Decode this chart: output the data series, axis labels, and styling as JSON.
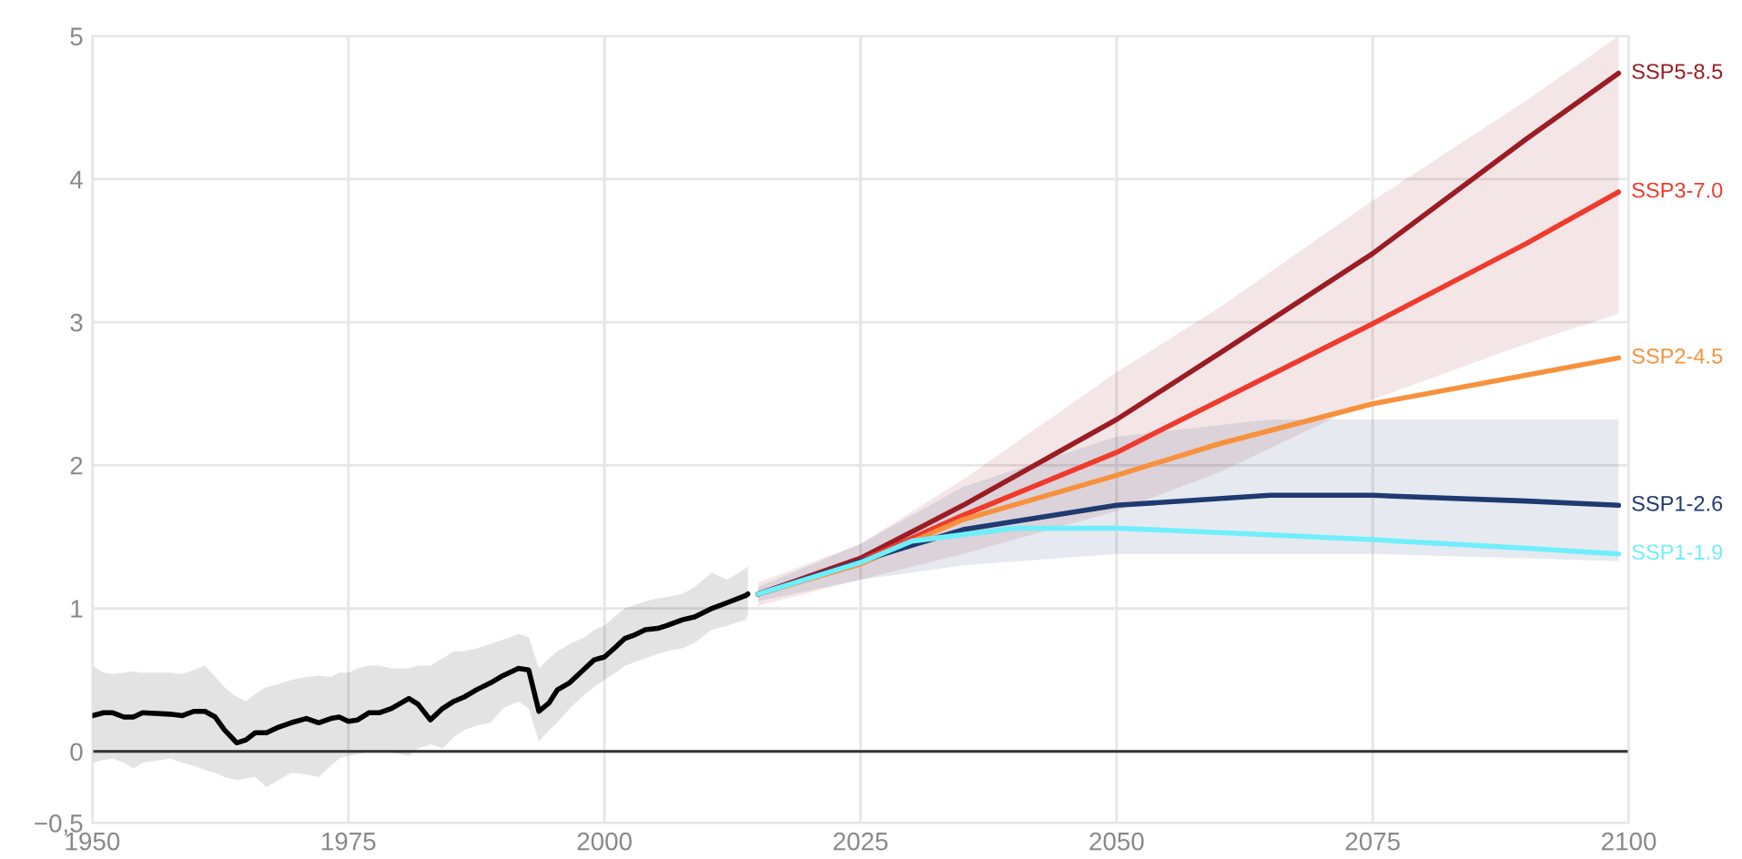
{
  "chart_data": {
    "type": "line",
    "xlim": [
      1950,
      2100
    ],
    "ylim": [
      -0.5,
      5
    ],
    "xticks": [
      1950,
      1975,
      2000,
      2025,
      2050,
      2075,
      2100
    ],
    "yticks": [
      {
        "value": -0.5,
        "label": "−0,5"
      },
      0,
      1,
      2,
      3,
      4,
      5
    ],
    "grid": true,
    "legend": false,
    "marker": "none",
    "line_style": "solid",
    "ref_lines": [
      {
        "axis": "y",
        "value": 0,
        "color": "#333333"
      }
    ],
    "series": [
      {
        "color": "#000000",
        "x": [
          1950,
          1951.1,
          1952,
          1953.1,
          1954,
          1954.9,
          1957.6,
          1958.8,
          1959.9,
          1961,
          1962,
          1962.9,
          1964.1,
          1965,
          1965.9,
          1967,
          1968.2,
          1969.4,
          1970.9,
          1972.1,
          1973.3,
          1974.1,
          1975,
          1975.9,
          1977,
          1978,
          1979.2,
          1980.9,
          1981.8,
          1983,
          1984.2,
          1985.3,
          1986.3,
          1987.5,
          1988.9,
          1990.1,
          1991.6,
          1992.6,
          1993.6,
          1994.6,
          1995.4,
          1996.6,
          1998.1,
          1999,
          2000,
          2001.1,
          2002,
          2002.8,
          2004,
          2005.2,
          2006.1,
          2007.6,
          2008.8,
          2010.5,
          2012,
          2013.8,
          2014
        ],
        "values": [
          0.25,
          0.27,
          0.27,
          0.24,
          0.24,
          0.27,
          0.26,
          0.25,
          0.28,
          0.28,
          0.24,
          0.15,
          0.06,
          0.08,
          0.13,
          0.13,
          0.17,
          0.2,
          0.23,
          0.2,
          0.23,
          0.24,
          0.21,
          0.22,
          0.27,
          0.27,
          0.3,
          0.37,
          0.33,
          0.22,
          0.3,
          0.35,
          0.38,
          0.43,
          0.48,
          0.53,
          0.58,
          0.57,
          0.28,
          0.34,
          0.43,
          0.48,
          0.58,
          0.64,
          0.66,
          0.73,
          0.79,
          0.81,
          0.85,
          0.86,
          0.88,
          0.92,
          0.94,
          1.0,
          1.04,
          1.09,
          1.1
        ],
        "lower": [
          -0.08,
          -0.06,
          -0.05,
          -0.08,
          -0.12,
          -0.08,
          -0.05,
          -0.08,
          -0.1,
          -0.13,
          -0.15,
          -0.18,
          -0.2,
          -0.19,
          -0.18,
          -0.25,
          -0.2,
          -0.15,
          -0.16,
          -0.18,
          -0.1,
          -0.05,
          -0.03,
          -0.02,
          0.0,
          0.0,
          -0.01,
          -0.03,
          0.02,
          0.05,
          0.02,
          0.1,
          0.15,
          0.18,
          0.2,
          0.3,
          0.35,
          0.3,
          0.07,
          0.15,
          0.2,
          0.3,
          0.4,
          0.45,
          0.5,
          0.55,
          0.6,
          0.62,
          0.65,
          0.68,
          0.7,
          0.72,
          0.76,
          0.85,
          0.88,
          0.92,
          0.95
        ],
        "upper": [
          0.6,
          0.55,
          0.54,
          0.55,
          0.56,
          0.55,
          0.55,
          0.54,
          0.57,
          0.6,
          0.52,
          0.45,
          0.38,
          0.35,
          0.4,
          0.45,
          0.47,
          0.5,
          0.52,
          0.53,
          0.52,
          0.55,
          0.55,
          0.58,
          0.6,
          0.6,
          0.58,
          0.58,
          0.6,
          0.6,
          0.65,
          0.7,
          0.7,
          0.72,
          0.75,
          0.78,
          0.82,
          0.8,
          0.58,
          0.65,
          0.7,
          0.75,
          0.8,
          0.85,
          0.88,
          0.95,
          1.0,
          1.02,
          1.05,
          1.07,
          1.08,
          1.1,
          1.15,
          1.25,
          1.2,
          1.28,
          1.3
        ]
      },
      {
        "name": "SSP5-8.5",
        "color": "#9b1c24",
        "x": [
          2015,
          2025,
          2035,
          2050,
          2060,
          2075,
          2090,
          2099
        ],
        "values": [
          1.1,
          1.35,
          1.72,
          2.32,
          2.78,
          3.48,
          4.28,
          4.74
        ],
        "lower": [
          1.02,
          1.2,
          1.38,
          1.68,
          1.95,
          2.46,
          2.85,
          3.06
        ],
        "upper": [
          1.18,
          1.45,
          1.9,
          2.65,
          3.1,
          3.85,
          4.55,
          5.0
        ]
      },
      {
        "name": "SSP3-7.0",
        "color": "#ef3a2c",
        "x": [
          2015,
          2025,
          2035,
          2050,
          2060,
          2075,
          2090,
          2099
        ],
        "values": [
          1.1,
          1.33,
          1.65,
          2.09,
          2.45,
          2.99,
          3.55,
          3.91
        ]
      },
      {
        "name": "SSP2-4.5",
        "color": "#f7913d",
        "x": [
          2015,
          2025,
          2035,
          2050,
          2060,
          2075,
          2090,
          2099
        ],
        "values": [
          1.1,
          1.31,
          1.62,
          1.93,
          2.15,
          2.43,
          2.63,
          2.75
        ]
      },
      {
        "name": "SSP1-2.6",
        "color": "#1f3a70",
        "x": [
          2015,
          2025,
          2035,
          2050,
          2065,
          2075,
          2090,
          2099
        ],
        "values": [
          1.1,
          1.33,
          1.55,
          1.72,
          1.79,
          1.79,
          1.75,
          1.72
        ],
        "lower": [
          1.05,
          1.2,
          1.3,
          1.38,
          1.38,
          1.38,
          1.35,
          1.33
        ],
        "upper": [
          1.15,
          1.45,
          1.85,
          2.2,
          2.32,
          2.32,
          2.32,
          2.32
        ]
      },
      {
        "name": "SSP1-1.9",
        "color": "#6feefc",
        "x": [
          2015,
          2025,
          2030,
          2040,
          2050,
          2060,
          2075,
          2090,
          2099
        ],
        "values": [
          1.1,
          1.32,
          1.47,
          1.56,
          1.56,
          1.53,
          1.48,
          1.42,
          1.38
        ]
      }
    ]
  }
}
